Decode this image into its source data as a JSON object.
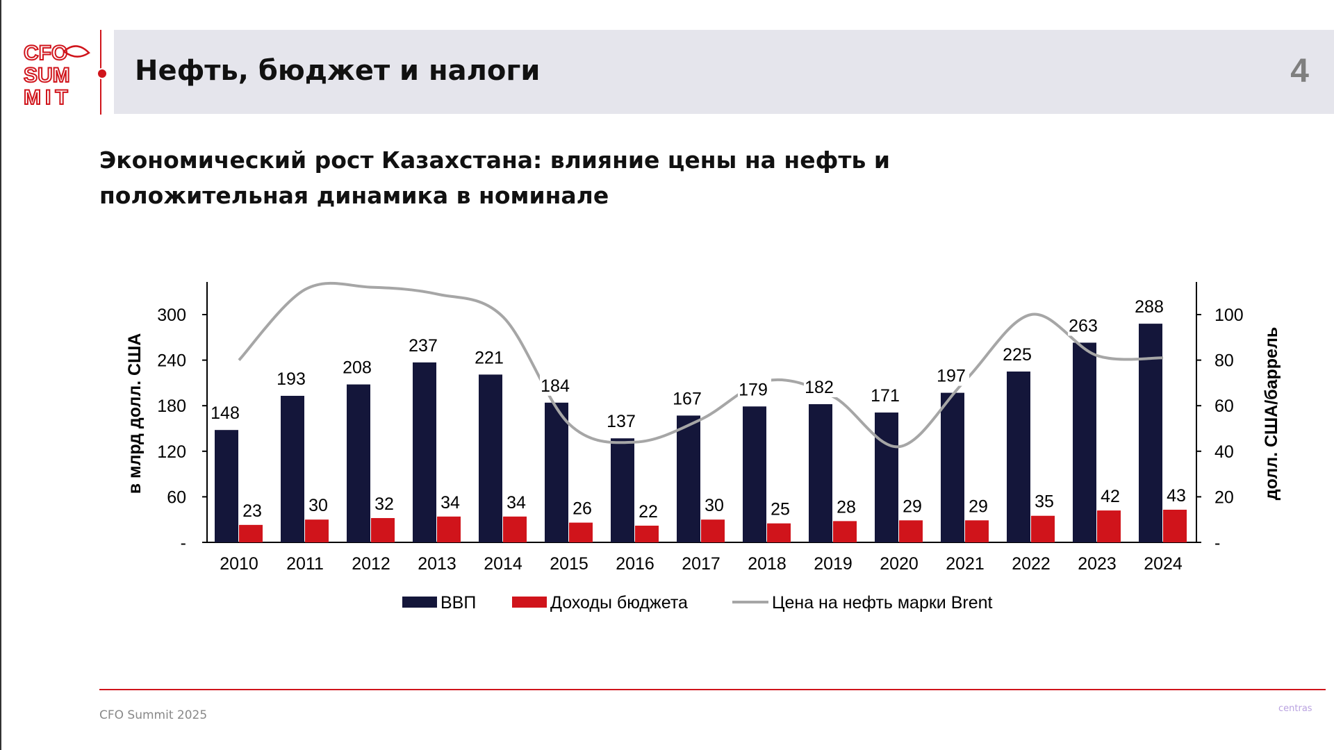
{
  "header": {
    "title": "Нефть, бюджет и налоги",
    "page_number": "4"
  },
  "logo": {
    "text": [
      "CFO",
      "SUM",
      "MIT"
    ],
    "color": "#d0141b"
  },
  "subtitle": {
    "line1": "Экономический рост Казахстана: влияние цены на нефть и",
    "line2": "положительная динамика в номинале"
  },
  "chart_data": {
    "type": "bar",
    "categories": [
      "2010",
      "2011",
      "2012",
      "2013",
      "2014",
      "2015",
      "2016",
      "2017",
      "2018",
      "2019",
      "2020",
      "2021",
      "2022",
      "2023",
      "2024"
    ],
    "ylabel": "в млрд долл. США",
    "y2label": "долл. США/баррель",
    "ylim": [
      0,
      360
    ],
    "y_ticks": [
      "-",
      "60",
      "120",
      "180",
      "240",
      "300"
    ],
    "y2lim": [
      0,
      120
    ],
    "y2_ticks": [
      "-",
      "20",
      "40",
      "60",
      "80",
      "100"
    ],
    "series": [
      {
        "name": "ВВП",
        "type": "bar",
        "color": "#14163a",
        "values": [
          148,
          193,
          208,
          237,
          221,
          184,
          137,
          167,
          179,
          182,
          171,
          197,
          225,
          263,
          288
        ]
      },
      {
        "name": "Доходы бюджета",
        "type": "bar",
        "color": "#d0141b",
        "values": [
          23,
          30,
          32,
          34,
          34,
          26,
          22,
          30,
          25,
          28,
          29,
          29,
          35,
          42,
          43
        ]
      },
      {
        "name": "Цена на нефть марки Brent",
        "type": "line",
        "axis": "right",
        "color": "#a6a6a6",
        "values": [
          80,
          111,
          112,
          109,
          99,
          52,
          44,
          54,
          71,
          64,
          42,
          71,
          100,
          82,
          81
        ]
      }
    ],
    "legend": "bottom",
    "grid": false
  },
  "footer": {
    "text": "CFO Summit 2025",
    "brand": "centras"
  }
}
